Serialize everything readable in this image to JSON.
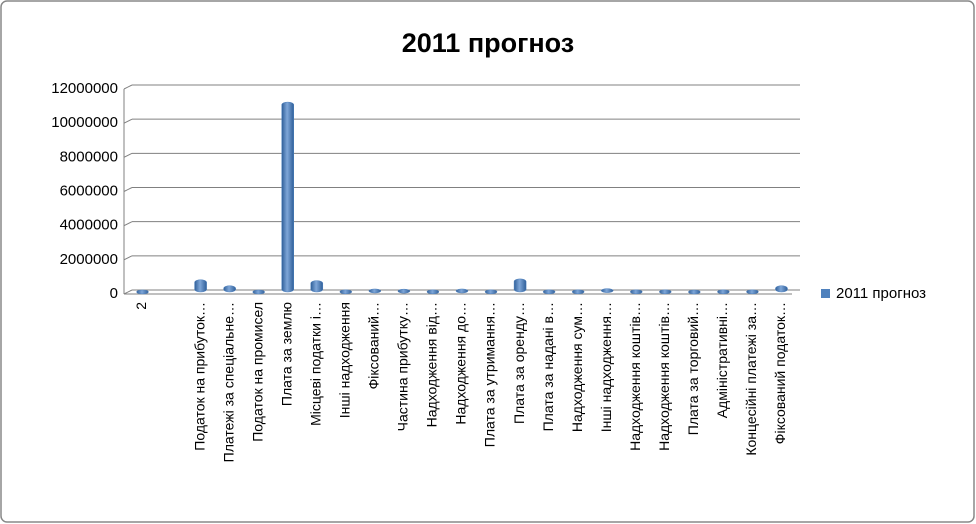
{
  "chart_data": {
    "type": "bar",
    "title": "2011 прогноз",
    "categories": [
      "2",
      null,
      "Податок на прибуток…",
      "Платежі за спеціальне…",
      "Податок на промисел",
      "Плата за землю",
      "Місцеві податки і…",
      "Інші надходження",
      "Фіксований…",
      "Частина прибутку…",
      "Надходження від…",
      "Надходження до…",
      "Плата за утримання…",
      "Плата за оренду…",
      "Плата за надані в…",
      "Надходження сум…",
      "Інші надходження…",
      "Надходження коштів…",
      "Надходження коштів…",
      "Плата за торговий…",
      "Адміністративні…",
      "Концесійні платежі за…",
      "Фіксований податок…"
    ],
    "series": [
      {
        "name": "2011 прогноз",
        "color": "#4f81bd",
        "values": [
          2000,
          null,
          600000,
          250000,
          0,
          11000000,
          550000,
          10000,
          60000,
          50000,
          10000,
          60000,
          10000,
          650000,
          10000,
          10000,
          80000,
          10000,
          10000,
          0,
          10000,
          10000,
          250000
        ]
      }
    ],
    "ylim": [
      0,
      12000000
    ],
    "yticks": [
      0,
      2000000,
      4000000,
      6000000,
      8000000,
      10000000,
      12000000
    ],
    "grid": true,
    "legend": "right"
  }
}
